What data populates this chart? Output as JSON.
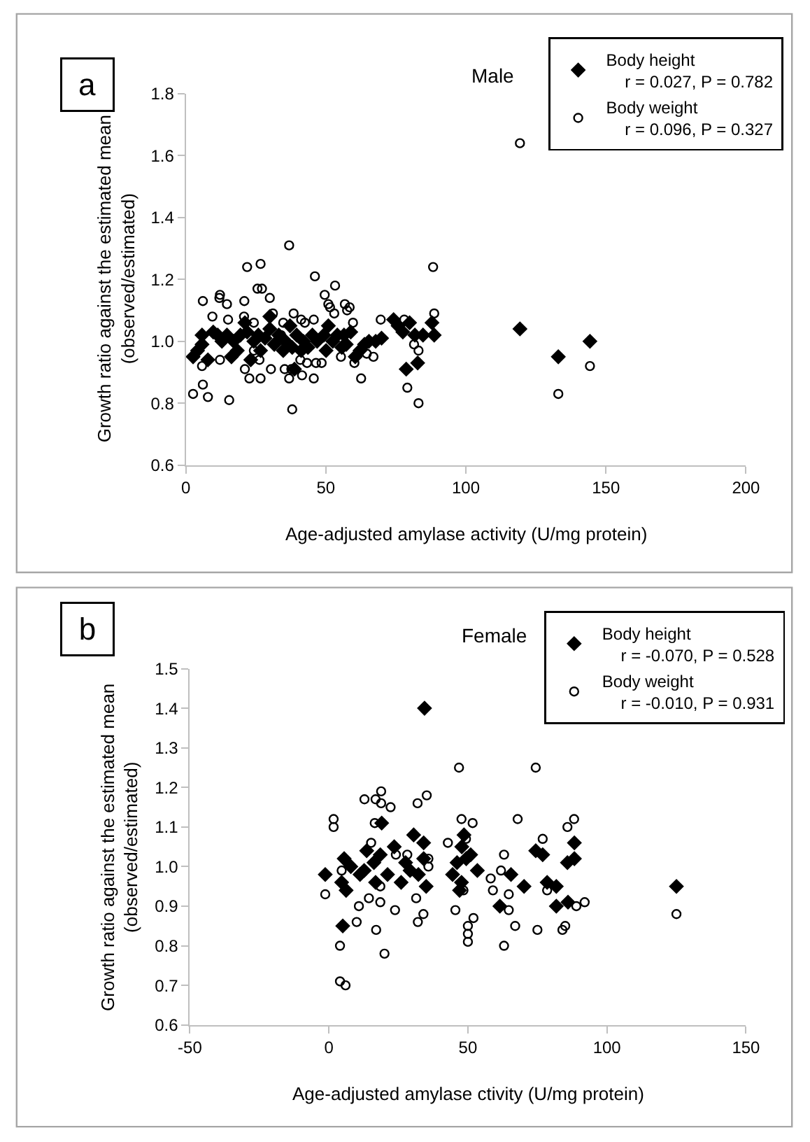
{
  "chart_data": [
    {
      "type": "scatter",
      "title": "Male",
      "xlabel": "Age-adjusted amylase activity (U/mg protein)",
      "ylabel": "Growth ratio against the estimated mean\n(observed/estimated)",
      "annotations": [
        "a"
      ],
      "xlim": [
        0,
        200
      ],
      "xticks": [
        0,
        50,
        100,
        150,
        200
      ],
      "ylim": [
        0.6,
        1.8
      ],
      "yticks": [
        0.6,
        0.8,
        {
          "value": 1.0,
          "label": "1.0"
        },
        1.2,
        1.4,
        1.6,
        1.8
      ],
      "legend": "top right",
      "series": [
        {
          "name": "Body height\n    r = 0.027, P = 0.782",
          "color": "#000000",
          "marker": "diamond",
          "x": [
            2.6,
            5.8,
            5.8,
            7.9,
            9.8,
            11.4,
            12.9,
            14.7,
            16.3,
            17.1,
            19.5,
            21.1,
            21.9,
            23.2,
            24.3,
            25.9,
            28.3,
            30.0,
            30.0,
            31.6,
            33.2,
            35.6,
            37.2,
            38.0,
            38.8,
            39.6,
            42.0,
            43.6,
            45.2,
            46.9,
            49.3,
            50.9,
            52.5,
            54.1,
            55.7,
            57.3,
            58.9,
            60.5,
            62.2,
            63.8,
            65.4,
            67.8,
            69.9,
            74.2,
            75.8,
            77.5,
            78.7,
            79.9,
            81.8,
            82.8,
            84.7,
            87.9,
            88.7,
            4.2,
            18.4,
            26.7,
            34.8,
            41.2,
            50.1,
            56.5,
            119.3,
            133.0,
            144.3
          ],
          "values": [
            0.95,
            1.02,
            0.99,
            0.94,
            1.03,
            1.02,
            1.0,
            1.02,
            0.95,
            1.0,
            1.02,
            1.06,
            1.03,
            0.94,
            1.0,
            1.02,
            1.01,
            1.08,
            1.04,
            0.99,
            1.02,
            1.0,
            1.05,
            0.98,
            0.91,
            1.02,
            1.0,
            0.98,
            1.02,
            1.0,
            1.02,
            1.05,
            1.0,
            1.02,
            0.98,
            0.99,
            1.03,
            0.95,
            0.97,
            0.99,
            1.0,
            1.0,
            1.01,
            1.07,
            1.05,
            1.03,
            0.91,
            1.06,
            1.02,
            0.93,
            1.02,
            1.06,
            1.02,
            0.97,
            0.97,
            0.97,
            0.97,
            0.97,
            0.97,
            1.02,
            1.04,
            0.95,
            1.0
          ]
        },
        {
          "name": "Body weight\n    r = 0.096, P = 0.327",
          "color": "#000000",
          "marker": "circle",
          "x": [
            2.6,
            6.1,
            7.9,
            15.5,
            6.1,
            9.5,
            12.2,
            12.0,
            14.7,
            15.1,
            5.8,
            12.2,
            20.9,
            21.9,
            26.7,
            25.6,
            27.2,
            30.0,
            20.8,
            24.3,
            21.1,
            22.7,
            26.7,
            26.3,
            30.4,
            31.1,
            36.9,
            38.0,
            36.9,
            37.7,
            35.3,
            38.5,
            41.2,
            42.5,
            40.9,
            41.5,
            43.3,
            45.7,
            46.1,
            45.7,
            46.5,
            48.5,
            49.6,
            50.9,
            51.5,
            53.3,
            53.0,
            56.8,
            57.6,
            58.5,
            59.7,
            55.4,
            60.2,
            62.6,
            64.6,
            67.0,
            69.6,
            34.8,
            34.0,
            24.3,
            119.3,
            88.3,
            88.7,
            83.1,
            79.1,
            83.1,
            133.0,
            144.3,
            78.0,
            81.5
          ],
          "values": [
            0.83,
            0.86,
            0.82,
            0.81,
            1.13,
            1.08,
            1.15,
            1.14,
            1.12,
            1.07,
            0.92,
            0.94,
            1.13,
            1.24,
            1.25,
            1.17,
            1.17,
            1.14,
            1.08,
            1.06,
            0.91,
            0.88,
            0.88,
            0.94,
            0.91,
            1.09,
            1.31,
            0.78,
            0.88,
            0.91,
            0.91,
            1.09,
            1.07,
            1.06,
            0.94,
            0.89,
            0.93,
            0.88,
            1.21,
            1.07,
            0.93,
            0.93,
            1.15,
            1.12,
            1.11,
            1.18,
            1.09,
            1.12,
            1.1,
            1.11,
            1.06,
            0.95,
            0.93,
            0.88,
            0.96,
            0.95,
            1.07,
            1.06,
            1.02,
            0.97,
            1.64,
            1.24,
            1.09,
            0.97,
            0.85,
            0.8,
            0.83,
            0.92,
            1.07,
            0.99
          ]
        }
      ]
    },
    {
      "type": "scatter",
      "title": "Female",
      "xlabel": "Age-adjusted amylase ctivity (U/mg protein)",
      "ylabel": "Growth ratio against the estimated mean\n(observed/estimated)",
      "annotations": [
        "b"
      ],
      "xlim": [
        -50,
        150
      ],
      "xticks": [
        -50,
        0,
        50,
        100,
        150
      ],
      "ylim": [
        0.6,
        1.5
      ],
      "yticks": [
        0.6,
        0.7,
        0.8,
        0.9,
        {
          "value": 1.0,
          "label": "1.0"
        },
        1.1,
        1.2,
        1.3,
        1.4,
        1.5
      ],
      "legend": "top right",
      "series": [
        {
          "name": "Body height\n    r = -0.070, P = 0.528",
          "color": "#000000",
          "marker": "diamond",
          "x": [
            -1.3,
            5.5,
            7.9,
            4.6,
            6.2,
            11.2,
            13.6,
            18.5,
            19.0,
            16.2,
            21.1,
            23.5,
            26.0,
            27.6,
            30.5,
            34.1,
            34.1,
            35.0,
            29.2,
            16.8,
            12.7,
            44.5,
            46.1,
            47.7,
            48.6,
            51.0,
            47.8,
            49.4,
            53.4,
            47.0,
            65.5,
            70.2,
            74.4,
            76.9,
            78.5,
            81.8,
            81.8,
            61.5,
            85.8,
            88.3,
            88.3,
            32.2,
            125.0,
            34.4,
            5.0,
            86.0
          ],
          "values": [
            0.98,
            1.02,
            1.0,
            0.96,
            0.94,
            0.98,
            1.04,
            1.03,
            1.11,
            1.01,
            0.98,
            1.05,
            0.96,
            1.01,
            1.08,
            1.06,
            1.02,
            0.95,
            0.99,
            0.96,
            0.99,
            0.98,
            1.01,
            0.96,
            1.08,
            1.03,
            1.05,
            1.02,
            0.99,
            0.94,
            0.98,
            0.95,
            1.04,
            1.03,
            0.96,
            0.95,
            0.9,
            0.9,
            1.01,
            1.02,
            1.06,
            0.98,
            0.95,
            1.4,
            0.85,
            0.91
          ]
        },
        {
          "name": "Body weight\n    r = -0.010, P = 0.931",
          "color": "#000000",
          "marker": "circle",
          "x": [
            -1.3,
            1.7,
            1.7,
            12.8,
            16.8,
            18.8,
            18.8,
            22.2,
            16.5,
            31.9,
            35.2,
            15.2,
            4.6,
            10.8,
            18.5,
            14.4,
            18.5,
            23.8,
            31.4,
            35.8,
            35.8,
            24.1,
            28.2,
            42.8,
            47.7,
            46.8,
            48.4,
            45.5,
            49.3,
            74.4,
            51.7,
            67.9,
            76.9,
            85.8,
            88.2,
            63.0,
            61.9,
            58.2,
            59.0,
            64.7,
            78.5,
            89.0,
            64.7,
            125.0,
            4.0,
            6.0,
            4.0,
            10.0,
            17.0,
            20.0,
            32.0,
            34.0,
            50.0,
            50.0,
            50.0,
            52.0,
            63.0,
            67.0,
            75.0,
            84.0,
            85.0,
            92.0
          ],
          "values": [
            0.93,
            1.12,
            1.1,
            1.17,
            1.17,
            1.19,
            1.16,
            1.15,
            1.11,
            1.16,
            1.18,
            1.06,
            0.99,
            0.9,
            0.95,
            0.92,
            0.91,
            0.89,
            0.92,
            1.02,
            1.0,
            1.03,
            1.03,
            1.06,
            1.12,
            1.25,
            0.94,
            0.89,
            1.07,
            1.25,
            1.11,
            1.12,
            1.07,
            1.1,
            1.12,
            1.03,
            0.99,
            0.97,
            0.94,
            0.93,
            0.94,
            0.9,
            0.89,
            0.88,
            0.8,
            0.7,
            0.71,
            0.86,
            0.84,
            0.78,
            0.86,
            0.88,
            0.81,
            0.83,
            0.85,
            0.87,
            0.8,
            0.85,
            0.84,
            0.84,
            0.85,
            0.91
          ]
        }
      ]
    }
  ]
}
